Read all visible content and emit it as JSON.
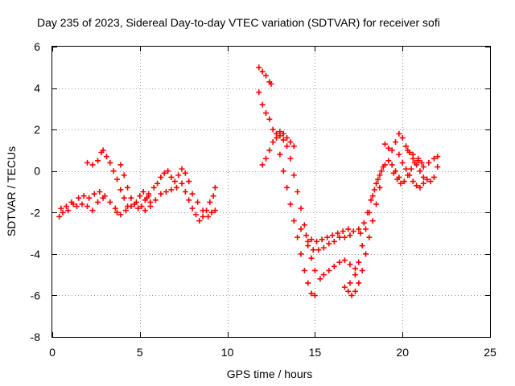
{
  "chart_data": {
    "type": "scatter",
    "title": "Day 235 of 2023, Sidereal Day-to-day VTEC variation (SDTVAR) for receiver sofi",
    "xlabel": "GPS time / hours",
    "ylabel": "SDTVAR / TECUs",
    "xlim": [
      0,
      25
    ],
    "ylim": [
      -8,
      6
    ],
    "xticks": [
      0,
      5,
      10,
      15,
      20,
      25
    ],
    "yticks": [
      -8,
      -6,
      -4,
      -2,
      0,
      2,
      4,
      6
    ],
    "grid": true,
    "marker": "+",
    "color": "#ff0000",
    "series": [
      {
        "points": [
          [
            0.4,
            -2.2
          ],
          [
            0.6,
            -2.0
          ],
          [
            0.9,
            -1.9
          ],
          [
            1.2,
            -1.6
          ],
          [
            1.5,
            -1.3
          ],
          [
            1.8,
            -1.2
          ],
          [
            2.1,
            -1.3
          ],
          [
            2.4,
            -1.1
          ],
          [
            2.7,
            -1.0
          ],
          [
            3.0,
            -1.2
          ],
          [
            3.3,
            -1.5
          ],
          [
            3.6,
            -1.8
          ],
          [
            0.5,
            -1.8
          ],
          [
            0.8,
            -1.7
          ],
          [
            1.1,
            -1.5
          ],
          [
            1.4,
            -1.7
          ],
          [
            1.7,
            -1.6
          ],
          [
            2.0,
            -1.7
          ],
          [
            2.3,
            -1.9
          ],
          [
            2.6,
            -1.5
          ],
          [
            2.9,
            -1.3
          ],
          [
            2.0,
            0.4
          ],
          [
            2.3,
            0.3
          ],
          [
            2.6,
            0.5
          ],
          [
            2.8,
            0.9
          ],
          [
            2.9,
            1.0
          ],
          [
            3.1,
            0.7
          ],
          [
            3.3,
            0.4
          ],
          [
            3.5,
            0.0
          ],
          [
            3.7,
            -0.4
          ],
          [
            3.9,
            -0.9
          ],
          [
            4.1,
            -1.3
          ],
          [
            4.3,
            -1.7
          ],
          [
            3.9,
            0.3
          ],
          [
            4.1,
            -0.2
          ],
          [
            4.3,
            -0.8
          ],
          [
            4.5,
            -1.3
          ],
          [
            4.7,
            -1.6
          ],
          [
            4.9,
            -1.8
          ],
          [
            5.1,
            -1.7
          ],
          [
            5.3,
            -1.4
          ],
          [
            5.5,
            -1.2
          ],
          [
            3.7,
            -2.0
          ],
          [
            3.9,
            -2.1
          ],
          [
            4.2,
            -1.9
          ],
          [
            4.5,
            -1.7
          ],
          [
            4.8,
            -1.5
          ],
          [
            5.0,
            -1.2
          ],
          [
            5.2,
            -1.0
          ],
          [
            5.4,
            -1.3
          ],
          [
            5.6,
            -1.5
          ],
          [
            5.5,
            -1.1
          ],
          [
            5.8,
            -0.8
          ],
          [
            6.0,
            -0.6
          ],
          [
            6.2,
            -0.3
          ],
          [
            6.4,
            -0.1
          ],
          [
            6.6,
            0.0
          ],
          [
            6.8,
            -0.3
          ],
          [
            7.0,
            -0.5
          ],
          [
            7.2,
            -0.2
          ],
          [
            7.4,
            0.1
          ],
          [
            7.6,
            -0.1
          ],
          [
            7.8,
            -0.5
          ],
          [
            5.3,
            -1.9
          ],
          [
            5.6,
            -1.7
          ],
          [
            5.9,
            -1.4
          ],
          [
            6.2,
            -1.1
          ],
          [
            6.5,
            -1.0
          ],
          [
            6.8,
            -0.9
          ],
          [
            7.1,
            -0.8
          ],
          [
            7.4,
            -0.6
          ],
          [
            7.6,
            -1.0
          ],
          [
            7.8,
            -1.4
          ],
          [
            8.0,
            -1.8
          ],
          [
            8.2,
            -2.1
          ],
          [
            8.4,
            -2.4
          ],
          [
            8.6,
            -2.2
          ],
          [
            8.8,
            -1.9
          ],
          [
            9.0,
            -1.5
          ],
          [
            9.2,
            -1.2
          ],
          [
            9.3,
            -0.8
          ],
          [
            8.0,
            -1.1
          ],
          [
            8.3,
            -1.5
          ],
          [
            8.6,
            -1.9
          ],
          [
            8.9,
            -2.2
          ],
          [
            9.1,
            -2.0
          ],
          [
            9.3,
            -1.9
          ],
          [
            11.8,
            5.0
          ],
          [
            12.0,
            4.8
          ],
          [
            12.2,
            4.6
          ],
          [
            12.4,
            4.3
          ],
          [
            12.5,
            4.2
          ],
          [
            11.8,
            3.8
          ],
          [
            12.0,
            3.2
          ],
          [
            12.2,
            2.8
          ],
          [
            12.4,
            2.5
          ],
          [
            12.6,
            2.0
          ],
          [
            12.8,
            1.6
          ],
          [
            13.0,
            1.7
          ],
          [
            13.2,
            1.5
          ],
          [
            13.4,
            1.2
          ],
          [
            13.6,
            0.6
          ],
          [
            13.8,
            -0.2
          ],
          [
            14.0,
            -1.0
          ],
          [
            14.2,
            -1.8
          ],
          [
            14.4,
            -2.6
          ],
          [
            14.6,
            -3.4
          ],
          [
            14.8,
            -4.2
          ],
          [
            15.0,
            -4.8
          ],
          [
            12.0,
            0.3
          ],
          [
            12.2,
            0.6
          ],
          [
            12.4,
            1.0
          ],
          [
            12.6,
            1.4
          ],
          [
            12.8,
            1.8
          ],
          [
            13.0,
            1.9
          ],
          [
            13.2,
            1.8
          ],
          [
            13.4,
            1.6
          ],
          [
            13.6,
            1.4
          ],
          [
            13.8,
            1.2
          ],
          [
            13.0,
            0.8
          ],
          [
            13.2,
            0.0
          ],
          [
            13.4,
            -0.8
          ],
          [
            13.6,
            -1.6
          ],
          [
            13.8,
            -2.4
          ],
          [
            14.0,
            -3.2
          ],
          [
            14.2,
            -4.0
          ],
          [
            14.4,
            -4.8
          ],
          [
            14.6,
            -5.4
          ],
          [
            14.8,
            -5.9
          ],
          [
            15.0,
            -6.0
          ],
          [
            14.2,
            -2.8
          ],
          [
            14.5,
            -3.1
          ],
          [
            14.8,
            -3.3
          ],
          [
            15.1,
            -3.4
          ],
          [
            15.4,
            -3.3
          ],
          [
            15.7,
            -3.2
          ],
          [
            16.0,
            -3.1
          ],
          [
            16.3,
            -3.0
          ],
          [
            16.6,
            -2.9
          ],
          [
            16.9,
            -2.8
          ],
          [
            17.2,
            -2.9
          ],
          [
            17.5,
            -2.8
          ],
          [
            14.6,
            -3.6
          ],
          [
            14.9,
            -3.8
          ],
          [
            15.2,
            -3.8
          ],
          [
            15.5,
            -3.7
          ],
          [
            15.8,
            -3.5
          ],
          [
            16.1,
            -3.4
          ],
          [
            16.4,
            -3.2
          ],
          [
            16.7,
            -3.2
          ],
          [
            17.0,
            -3.1
          ],
          [
            15.3,
            -5.2
          ],
          [
            15.5,
            -5.0
          ],
          [
            15.8,
            -4.8
          ],
          [
            16.1,
            -4.6
          ],
          [
            16.4,
            -4.4
          ],
          [
            16.7,
            -4.3
          ],
          [
            17.0,
            -4.5
          ],
          [
            17.3,
            -4.7
          ],
          [
            16.7,
            -5.6
          ],
          [
            16.9,
            -5.8
          ],
          [
            17.1,
            -6.0
          ],
          [
            17.3,
            -5.8
          ],
          [
            17.5,
            -5.4
          ],
          [
            17.7,
            -4.8
          ],
          [
            17.9,
            -4.0
          ],
          [
            18.1,
            -3.2
          ],
          [
            18.3,
            -2.4
          ],
          [
            18.5,
            -1.6
          ],
          [
            18.7,
            -0.8
          ],
          [
            17.0,
            -5.4
          ],
          [
            17.3,
            -5.0
          ],
          [
            17.5,
            -4.4
          ],
          [
            17.7,
            -3.6
          ],
          [
            17.9,
            -2.8
          ],
          [
            18.1,
            -2.0
          ],
          [
            18.3,
            -1.2
          ],
          [
            18.5,
            -0.6
          ],
          [
            18.7,
            -0.2
          ],
          [
            18.9,
            0.2
          ],
          [
            17.6,
            -3.0
          ],
          [
            17.8,
            -2.5
          ],
          [
            18.0,
            -2.0
          ],
          [
            18.2,
            -1.4
          ],
          [
            18.4,
            -0.9
          ],
          [
            18.6,
            -0.4
          ],
          [
            18.8,
            0.0
          ],
          [
            19.0,
            0.3
          ],
          [
            19.2,
            0.5
          ],
          [
            19.4,
            0.3
          ],
          [
            19.6,
            0.0
          ],
          [
            19.8,
            -0.3
          ],
          [
            19.0,
            1.3
          ],
          [
            19.2,
            1.1
          ],
          [
            19.4,
            1.0
          ],
          [
            19.6,
            1.4
          ],
          [
            19.8,
            1.8
          ],
          [
            20.0,
            1.6
          ],
          [
            20.2,
            1.2
          ],
          [
            20.4,
            0.9
          ],
          [
            20.6,
            0.6
          ],
          [
            20.8,
            0.3
          ],
          [
            21.0,
            0.0
          ],
          [
            21.2,
            -0.3
          ],
          [
            19.8,
            0.8
          ],
          [
            20.0,
            0.4
          ],
          [
            20.2,
            0.1
          ],
          [
            20.4,
            -0.2
          ],
          [
            20.6,
            -0.5
          ],
          [
            20.8,
            -0.7
          ],
          [
            21.0,
            -0.8
          ],
          [
            21.2,
            -0.6
          ],
          [
            21.4,
            -0.4
          ],
          [
            21.6,
            -0.5
          ],
          [
            21.8,
            -0.3
          ],
          [
            22.0,
            0.2
          ],
          [
            20.3,
            1.0
          ],
          [
            20.6,
            0.8
          ],
          [
            20.9,
            0.5
          ],
          [
            21.2,
            0.2
          ],
          [
            21.5,
            0.4
          ],
          [
            21.8,
            0.6
          ],
          [
            22.0,
            0.7
          ],
          [
            19.5,
            -0.1
          ],
          [
            19.7,
            -0.4
          ],
          [
            19.9,
            -0.6
          ],
          [
            20.1,
            -0.5
          ],
          [
            20.3,
            -0.2
          ],
          [
            20.5,
            0.1
          ],
          [
            20.7,
            0.4
          ],
          [
            20.9,
            0.6
          ],
          [
            21.1,
            0.4
          ]
        ]
      }
    ]
  }
}
